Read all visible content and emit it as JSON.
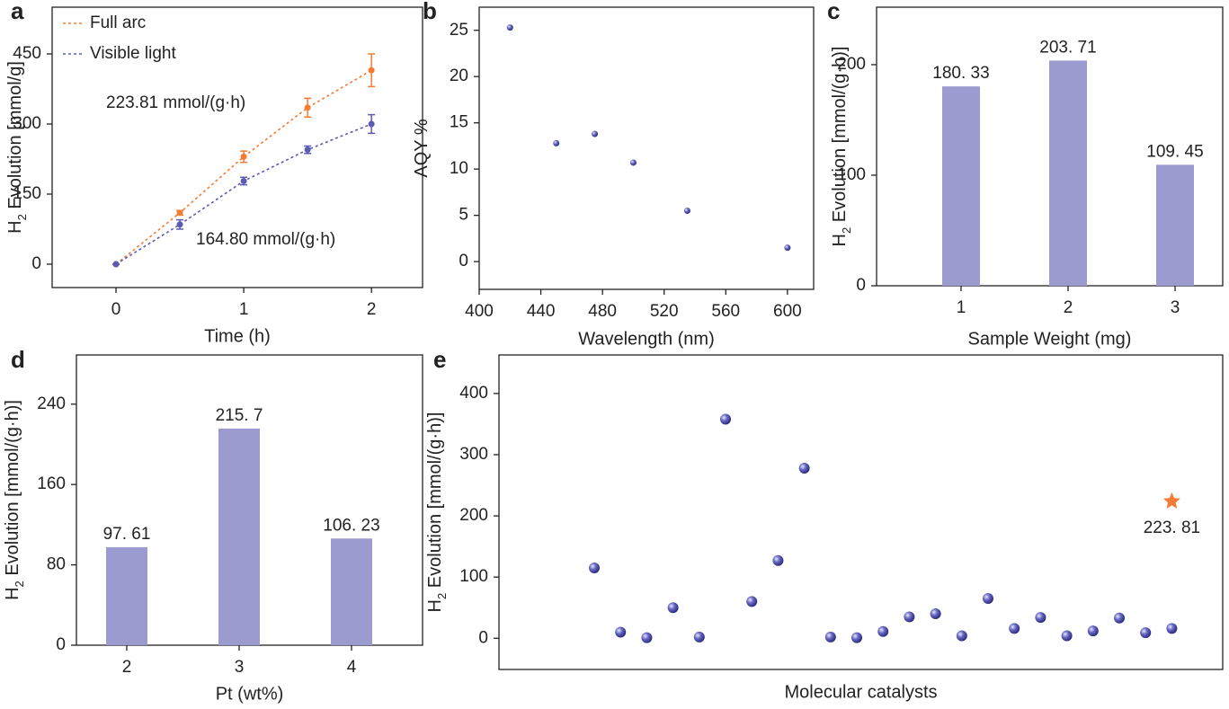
{
  "chart_data": [
    {
      "type": "line",
      "panel": "a",
      "ylabel": [
        "H",
        "2",
        " Evolution [mmol/g]"
      ],
      "xlabel": "Time (h)",
      "x": [
        0,
        0.5,
        1,
        1.5,
        2
      ],
      "series": [
        {
          "name": "Full arc",
          "color": "#f47b35",
          "values": [
            0,
            110,
            230,
            335,
            415
          ],
          "errors": [
            0,
            5,
            12,
            20,
            35
          ]
        },
        {
          "name": "Visible light",
          "color": "#5b5bb5",
          "values": [
            0,
            85,
            178,
            245,
            300
          ],
          "errors": [
            0,
            10,
            8,
            8,
            20
          ]
        }
      ],
      "annotations": [
        {
          "text": "223.81 mmol/(g·h)",
          "color": "#f47b35"
        },
        {
          "text": "164.80 mmol/(g·h)",
          "color": "#5b5bb5"
        }
      ],
      "xlim": [
        -0.5,
        2.4
      ],
      "ylim": [
        -50,
        550
      ],
      "xticks": [
        0,
        1,
        2
      ],
      "yticks": [
        0,
        150,
        300,
        450
      ],
      "legend": "upper left"
    },
    {
      "type": "scatter",
      "panel": "b",
      "ylabel": [
        "AQY  %"
      ],
      "xlabel": "Wavelength  (nm)",
      "x": [
        420,
        450,
        475,
        500,
        535,
        600
      ],
      "values": [
        25.3,
        12.8,
        13.8,
        10.7,
        5.5,
        1.5
      ],
      "color": "#5b5bb5",
      "xlim": [
        400,
        617
      ],
      "ylim": [
        -3,
        27.5
      ],
      "xticks": [
        400,
        440,
        480,
        520,
        560,
        600
      ],
      "yticks": [
        0,
        5,
        10,
        15,
        20,
        25
      ]
    },
    {
      "type": "bar",
      "panel": "c",
      "ylabel": [
        "H",
        "2",
        " Evolution [mmol/(g·h)]"
      ],
      "xlabel": "Sample  Weight  (mg)",
      "categories": [
        "1",
        "2",
        "3"
      ],
      "values": [
        180.33,
        203.71,
        109.45
      ],
      "value_labels": [
        "180. 33",
        "203. 71",
        "109. 45"
      ],
      "color": "#9b9bd0",
      "ylim": [
        0,
        252
      ],
      "yticks": [
        0,
        100,
        200
      ]
    },
    {
      "type": "bar",
      "panel": "d",
      "ylabel": [
        "H",
        "2",
        " Evolution [mmol/(g·h)]"
      ],
      "xlabel": "Pt  (wt%)",
      "categories": [
        "2",
        "3",
        "4"
      ],
      "values": [
        97.61,
        215.7,
        106.23
      ],
      "value_labels": [
        "97. 61",
        "215. 7",
        "106. 23"
      ],
      "color": "#9b9bd0",
      "ylim": [
        0,
        289
      ],
      "yticks": [
        0,
        80,
        160,
        240
      ]
    },
    {
      "type": "scatter",
      "panel": "e",
      "ylabel": [
        "H",
        "2",
        " Evolution [mmol/(g·h)]"
      ],
      "xlabel": "Molecular  catalysts",
      "categories": [
        null,
        null,
        null,
        null,
        null,
        null,
        null,
        null,
        null,
        null,
        null,
        null,
        null,
        null,
        null,
        null,
        null,
        null,
        null,
        null,
        null,
        null,
        null
      ],
      "series": [
        {
          "color": "#5b5bb5",
          "marker": "sphere",
          "values": [
            115,
            10,
            1,
            50,
            2,
            358,
            60,
            127,
            278,
            2,
            1,
            11,
            35,
            40,
            4,
            65,
            16,
            34,
            4,
            12,
            33,
            9,
            16
          ]
        },
        {
          "color": "#f47b35",
          "marker": "star",
          "values": [
            null,
            null,
            null,
            null,
            null,
            null,
            null,
            null,
            null,
            null,
            null,
            null,
            null,
            null,
            null,
            null,
            null,
            null,
            null,
            null,
            null,
            null,
            223.81
          ],
          "value_labels": [
            null,
            null,
            null,
            null,
            null,
            null,
            null,
            null,
            null,
            null,
            null,
            null,
            null,
            null,
            null,
            null,
            null,
            null,
            null,
            null,
            null,
            null,
            "223. 81"
          ]
        }
      ],
      "ylim": [
        -51,
        463
      ],
      "yticks": [
        0,
        100,
        200,
        300,
        400
      ]
    }
  ]
}
